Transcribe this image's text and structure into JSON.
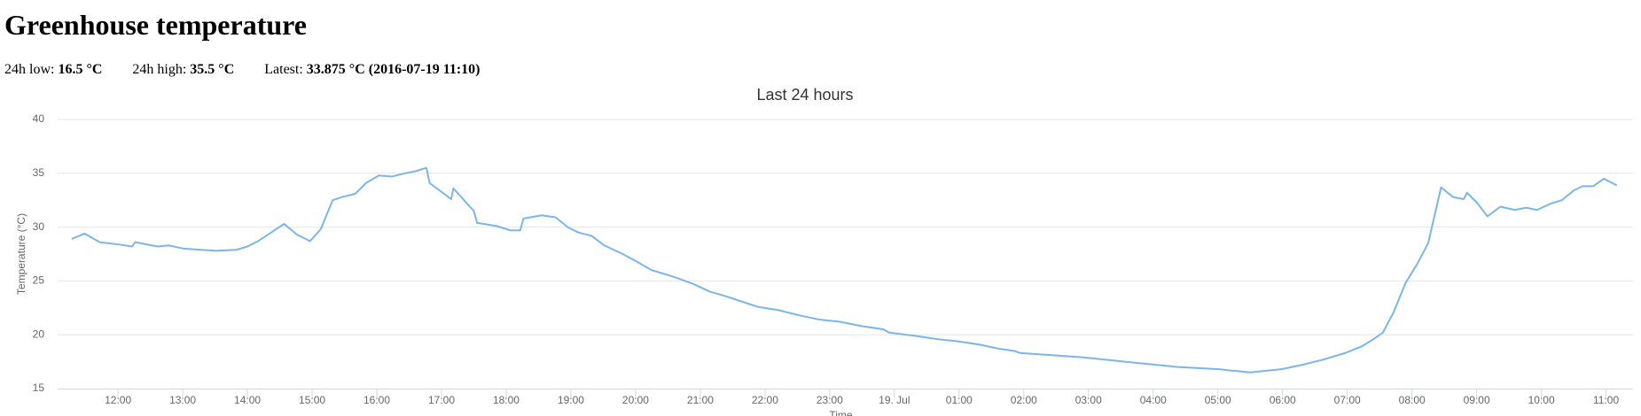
{
  "header": {
    "title": "Greenhouse temperature",
    "stats": [
      {
        "label": "24h low:",
        "value": "16.5 °C"
      },
      {
        "label": "24h high:",
        "value": "35.5 °C"
      },
      {
        "label": "Latest:",
        "value": "33.875 °C (2016-07-19 11:10)"
      }
    ]
  },
  "chart_data": {
    "type": "line",
    "title": "Last 24 hours",
    "x_label": "Time",
    "y_label": "Temperature (°C)",
    "x": [
      "2016-07-18 11:17",
      "2016-07-18 11:29",
      "2016-07-18 11:43",
      "2016-07-18 12:00",
      "2016-07-18 12:13",
      "2016-07-18 12:16",
      "2016-07-18 12:37",
      "2016-07-18 12:47",
      "2016-07-18 13:01",
      "2016-07-18 13:16",
      "2016-07-18 13:31",
      "2016-07-18 13:50",
      "2016-07-18 14:00",
      "2016-07-18 14:10",
      "2016-07-18 14:22",
      "2016-07-18 14:34",
      "2016-07-18 14:46",
      "2016-07-18 14:58",
      "2016-07-18 15:08",
      "2016-07-18 15:19",
      "2016-07-18 15:28",
      "2016-07-18 15:40",
      "2016-07-18 15:50",
      "2016-07-18 16:02",
      "2016-07-18 16:14",
      "2016-07-18 16:26",
      "2016-07-18 16:36",
      "2016-07-18 16:46",
      "2016-07-18 16:49",
      "2016-07-18 17:09",
      "2016-07-18 17:11",
      "2016-07-18 17:30",
      "2016-07-18 17:33",
      "2016-07-18 17:51",
      "2016-07-18 18:04",
      "2016-07-18 18:13",
      "2016-07-18 18:16",
      "2016-07-18 18:33",
      "2016-07-18 18:46",
      "2016-07-18 18:57",
      "2016-07-18 19:07",
      "2016-07-18 19:19",
      "2016-07-18 19:31",
      "2016-07-18 19:48",
      "2016-07-18 20:01",
      "2016-07-18 20:15",
      "2016-07-18 20:35",
      "2016-07-18 20:54",
      "2016-07-18 21:09",
      "2016-07-18 21:23",
      "2016-07-18 21:38",
      "2016-07-18 21:53",
      "2016-07-18 22:12",
      "2016-07-18 22:32",
      "2016-07-18 22:51",
      "2016-07-18 23:10",
      "2016-07-18 23:30",
      "2016-07-18 23:50",
      "2016-07-18 23:55",
      "2016-07-19 00:19",
      "2016-07-19 00:39",
      "2016-07-19 00:58",
      "2016-07-19 01:18",
      "2016-07-19 01:37",
      "2016-07-19 01:51",
      "2016-07-19 01:57",
      "2016-07-19 02:26",
      "2016-07-19 02:55",
      "2016-07-19 03:24",
      "2016-07-19 03:53",
      "2016-07-19 04:23",
      "2016-07-19 04:42",
      "2016-07-19 05:01",
      "2016-07-19 05:10",
      "2016-07-19 05:30",
      "2016-07-19 05:59",
      "2016-07-19 06:18",
      "2016-07-19 06:38",
      "2016-07-19 06:58",
      "2016-07-19 07:13",
      "2016-07-19 07:23",
      "2016-07-19 07:33",
      "2016-07-19 07:43",
      "2016-07-19 07:54",
      "2016-07-19 08:05",
      "2016-07-19 08:15",
      "2016-07-19 08:27",
      "2016-07-19 08:38",
      "2016-07-19 08:48",
      "2016-07-19 08:51",
      "2016-07-19 09:00",
      "2016-07-19 09:10",
      "2016-07-19 09:22",
      "2016-07-19 09:35",
      "2016-07-19 09:46",
      "2016-07-19 09:56",
      "2016-07-19 10:09",
      "2016-07-19 10:19",
      "2016-07-19 10:30",
      "2016-07-19 10:38",
      "2016-07-19 10:48",
      "2016-07-19 10:58",
      "2016-07-19 11:10"
    ],
    "series": [
      {
        "name": "Temperature",
        "color": "#7cb5ec",
        "values": [
          28.9,
          29.4,
          28.6,
          28.4,
          28.2,
          28.6,
          28.2,
          28.3,
          28.0,
          27.9,
          27.8,
          27.9,
          28.2,
          28.7,
          29.5,
          30.3,
          29.3,
          28.7,
          29.8,
          32.5,
          32.8,
          33.1,
          34.1,
          34.8,
          34.7,
          35.0,
          35.2,
          35.5,
          34.1,
          32.6,
          33.6,
          31.5,
          30.4,
          30.1,
          29.7,
          29.7,
          30.8,
          31.1,
          30.9,
          30.0,
          29.5,
          29.2,
          28.3,
          27.5,
          26.8,
          26.0,
          25.4,
          24.7,
          24.0,
          23.6,
          23.1,
          22.6,
          22.3,
          21.8,
          21.4,
          21.2,
          20.8,
          20.5,
          20.2,
          19.9,
          19.6,
          19.4,
          19.1,
          18.7,
          18.5,
          18.3,
          18.1,
          17.9,
          17.6,
          17.3,
          17.0,
          16.9,
          16.8,
          16.7,
          16.5,
          16.8,
          17.2,
          17.7,
          18.3,
          18.9,
          19.5,
          20.2,
          22.1,
          24.8,
          26.6,
          28.5,
          33.7,
          32.8,
          32.6,
          33.2,
          32.3,
          31.0,
          31.9,
          31.6,
          31.8,
          31.6,
          32.2,
          32.5,
          33.4,
          33.8,
          33.8,
          34.5,
          33.875
        ]
      }
    ],
    "xlim": [
      "2016-07-18 11:04",
      "2016-07-19 11:25"
    ],
    "xticks": [
      {
        "value": "2016-07-18 12:00",
        "label": "12:00"
      },
      {
        "value": "2016-07-18 13:00",
        "label": "13:00"
      },
      {
        "value": "2016-07-18 14:00",
        "label": "14:00"
      },
      {
        "value": "2016-07-18 15:00",
        "label": "15:00"
      },
      {
        "value": "2016-07-18 16:00",
        "label": "16:00"
      },
      {
        "value": "2016-07-18 17:00",
        "label": "17:00"
      },
      {
        "value": "2016-07-18 18:00",
        "label": "18:00"
      },
      {
        "value": "2016-07-18 19:00",
        "label": "19:00"
      },
      {
        "value": "2016-07-18 20:00",
        "label": "20:00"
      },
      {
        "value": "2016-07-18 21:00",
        "label": "21:00"
      },
      {
        "value": "2016-07-18 22:00",
        "label": "22:00"
      },
      {
        "value": "2016-07-18 23:00",
        "label": "23:00"
      },
      {
        "value": "2016-07-19 00:00",
        "label": "19. Jul"
      },
      {
        "value": "2016-07-19 01:00",
        "label": "01:00"
      },
      {
        "value": "2016-07-19 02:00",
        "label": "02:00"
      },
      {
        "value": "2016-07-19 03:00",
        "label": "03:00"
      },
      {
        "value": "2016-07-19 04:00",
        "label": "04:00"
      },
      {
        "value": "2016-07-19 05:00",
        "label": "05:00"
      },
      {
        "value": "2016-07-19 06:00",
        "label": "06:00"
      },
      {
        "value": "2016-07-19 07:00",
        "label": "07:00"
      },
      {
        "value": "2016-07-19 08:00",
        "label": "08:00"
      },
      {
        "value": "2016-07-19 09:00",
        "label": "09:00"
      },
      {
        "value": "2016-07-19 10:00",
        "label": "10:00"
      },
      {
        "value": "2016-07-19 11:00",
        "label": "11:00"
      }
    ],
    "ylim": [
      15,
      40
    ],
    "yticks": [
      15,
      20,
      25,
      30,
      35,
      40
    ],
    "grid": true
  }
}
